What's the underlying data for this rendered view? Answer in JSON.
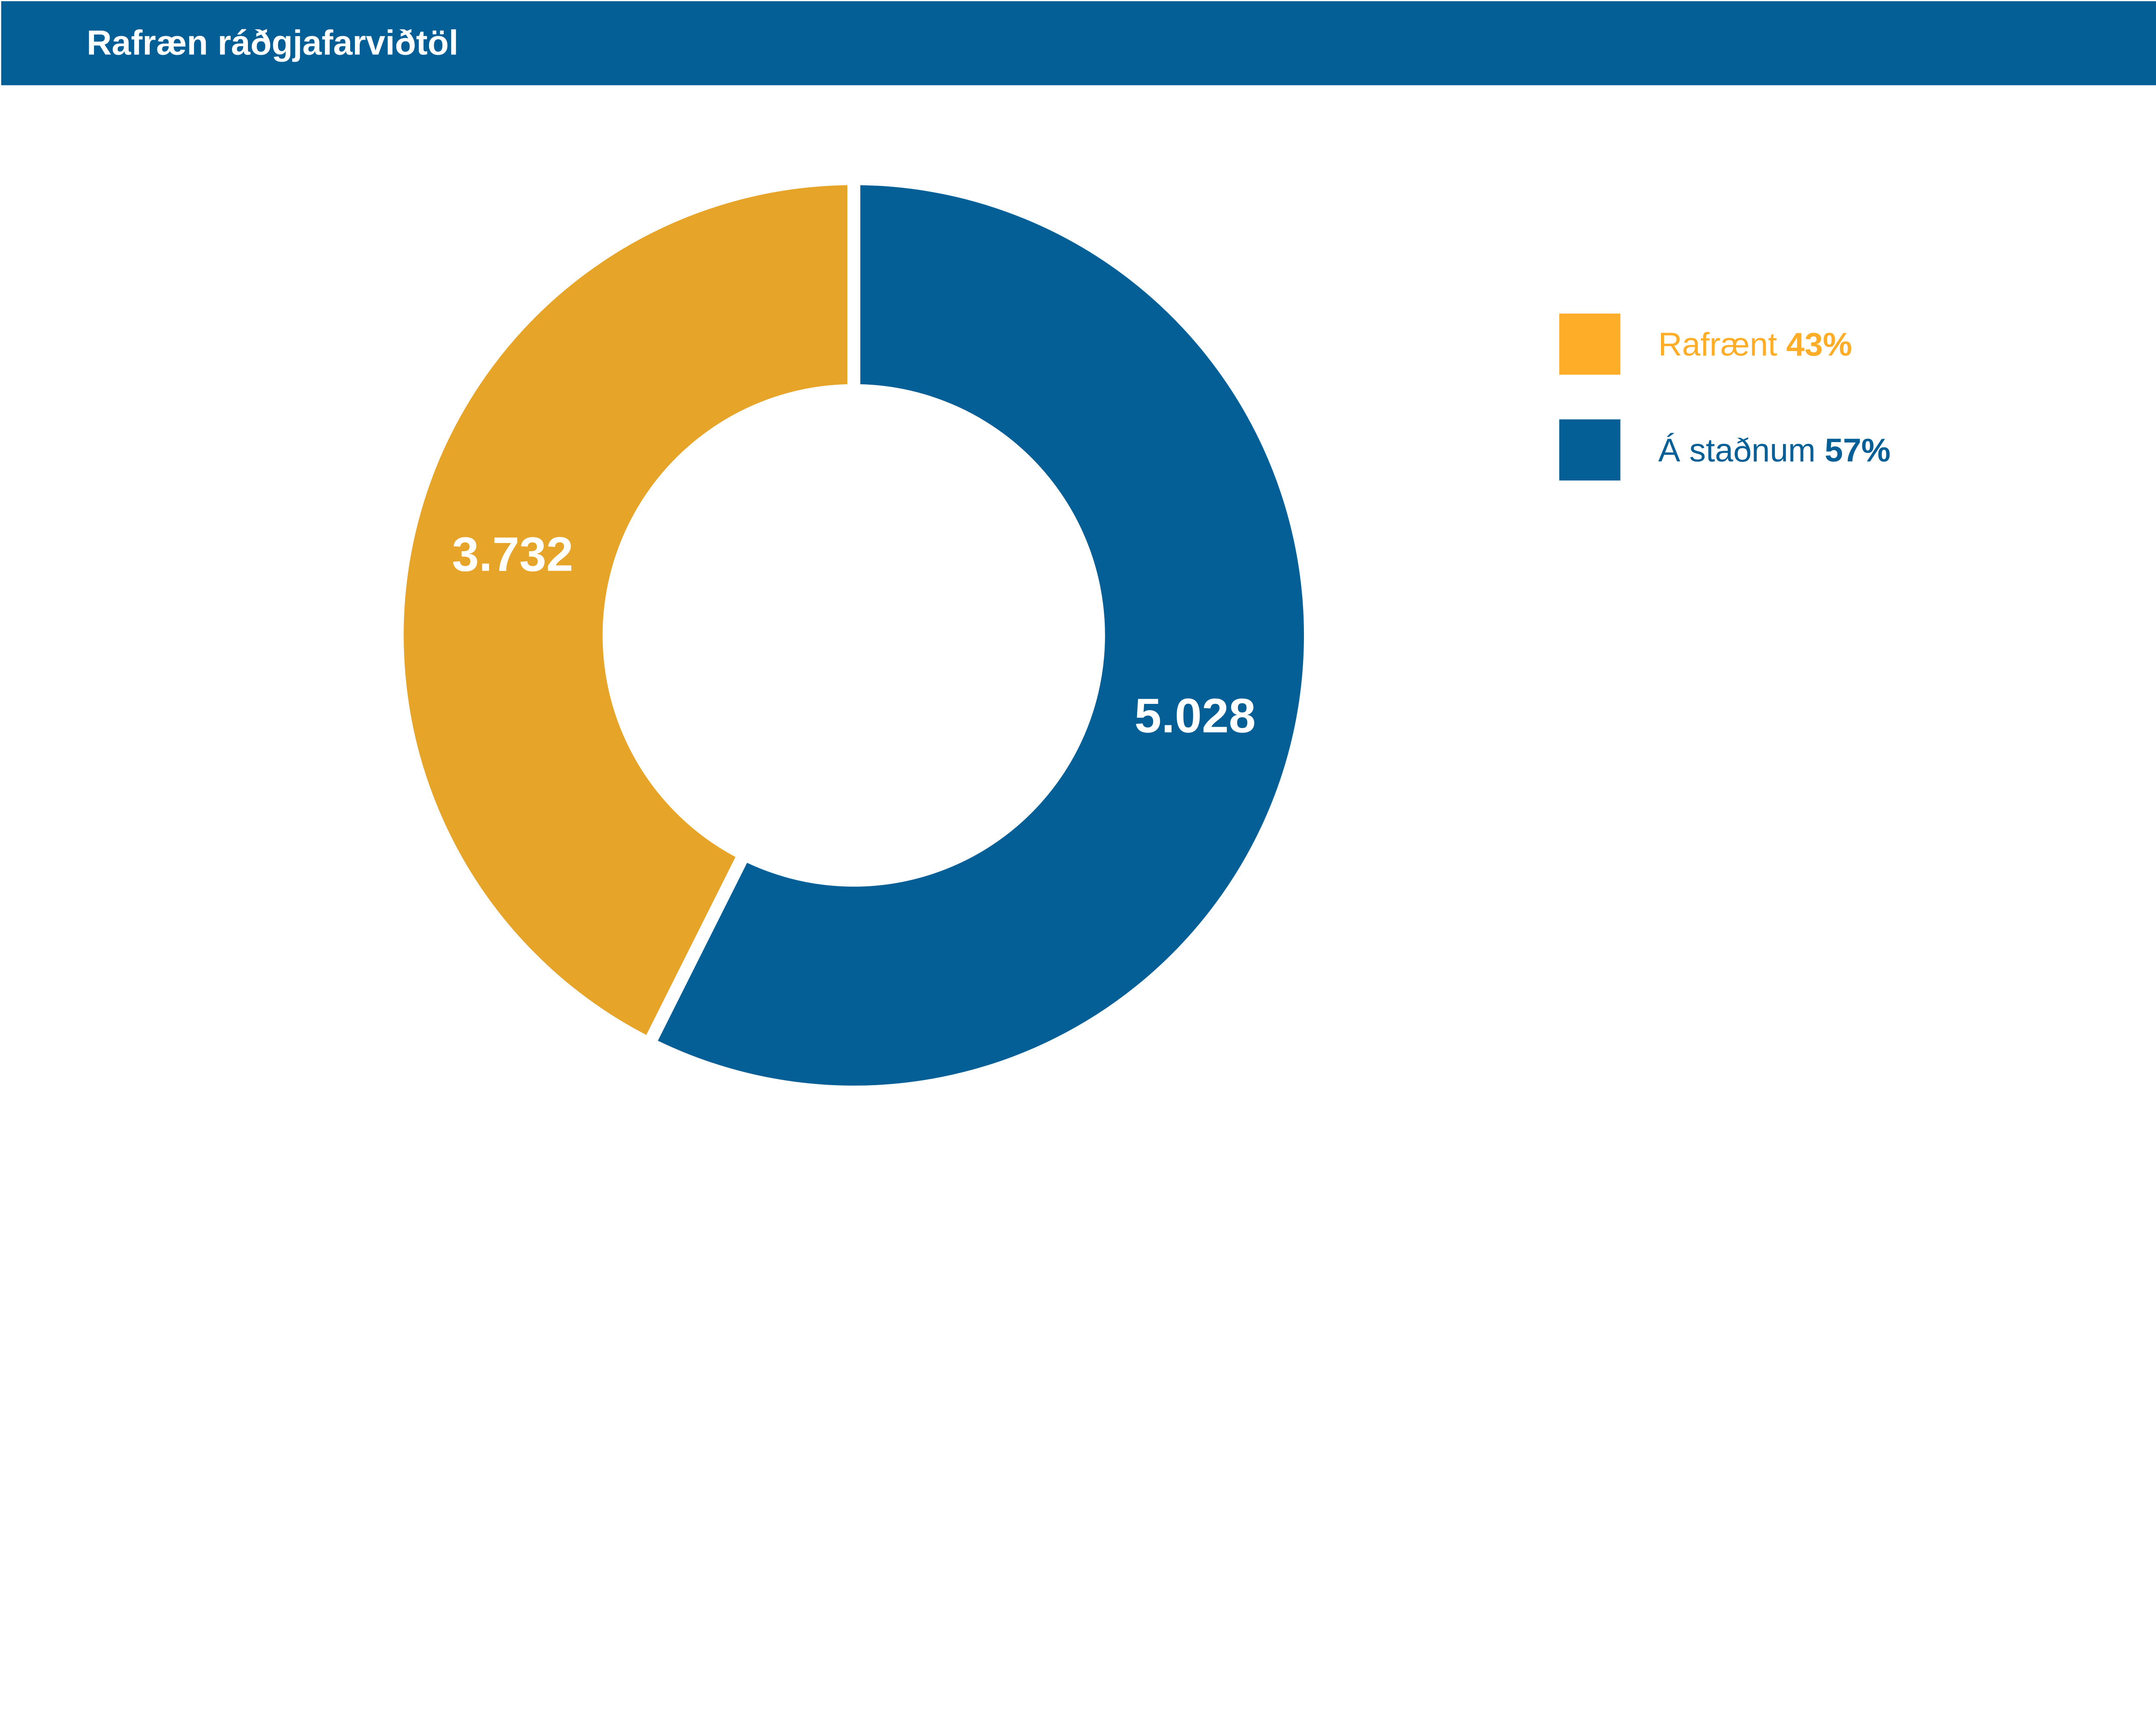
{
  "header": {
    "title": "Rafræn ráðgjafarviðtöl"
  },
  "chart_data": {
    "type": "pie",
    "variant": "donut",
    "title": "Rafræn ráðgjafarviðtöl",
    "slices": [
      {
        "name": "Á staðnum",
        "value": 5028,
        "label": "5.028",
        "percent_label": "57%",
        "color": "#035F96"
      },
      {
        "name": "Rafrænt",
        "value": 3732,
        "label": "3.732",
        "percent_label": "43%",
        "color": "#E6A429"
      }
    ],
    "start_angle": "12 o'clock",
    "direction": "clockwise",
    "legend_placement": "right",
    "legend": [
      {
        "name": "Rafrænt",
        "percent": "43%",
        "color": "#FDAD27"
      },
      {
        "name": "Á staðnum",
        "percent": "57%",
        "color": "#035F96"
      }
    ]
  }
}
